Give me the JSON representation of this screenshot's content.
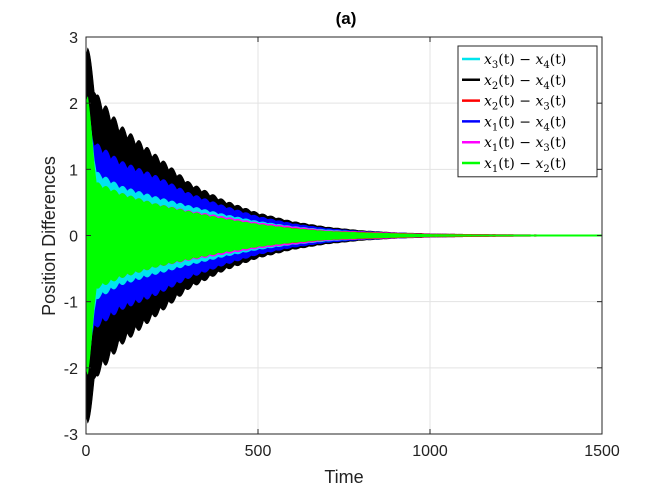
{
  "chart_data": {
    "type": "line",
    "title": "(a)",
    "xlabel": "Time",
    "ylabel": "Position Differences",
    "xlim": [
      0,
      1500
    ],
    "ylim": [
      -3,
      3
    ],
    "xticks": [
      0,
      500,
      1000,
      1500
    ],
    "yticks": [
      -3,
      -2,
      -1,
      0,
      1,
      2,
      3
    ],
    "xtick_labels": [
      "0",
      "500",
      "1000",
      "1500"
    ],
    "ytick_labels": [
      "-3",
      "-2",
      "-1",
      "0",
      "1",
      "2",
      "3"
    ],
    "grid": true,
    "legend_position": "top-right",
    "series": [
      {
        "name": "x3(t) − x4(t)",
        "color": "#00e5ee",
        "envelope": {
          "x": [
            0,
            5,
            30,
            100,
            200,
            300,
            400,
            500,
            600,
            700,
            800,
            1000,
            1200,
            1500
          ],
          "y": [
            1.9,
            1.9,
            0.9,
            0.7,
            0.55,
            0.42,
            0.3,
            0.2,
            0.13,
            0.08,
            0.05,
            0.02,
            0.01,
            0.005
          ]
        }
      },
      {
        "name": "x2(t) − x4(t)",
        "color": "#000000",
        "envelope": {
          "x": [
            0,
            5,
            30,
            100,
            200,
            300,
            400,
            500,
            600,
            700,
            800,
            900,
            1000,
            1200,
            1500
          ],
          "y": [
            2.7,
            2.7,
            2.0,
            1.55,
            1.15,
            0.75,
            0.5,
            0.32,
            0.2,
            0.12,
            0.07,
            0.04,
            0.025,
            0.01,
            0.005
          ]
        }
      },
      {
        "name": "x2(t) − x3(t)",
        "color": "#ff0000",
        "envelope": {
          "x": [
            0,
            5,
            30,
            100,
            200,
            300,
            500,
            700,
            1000,
            1500
          ],
          "y": [
            1.0,
            1.0,
            0.6,
            0.5,
            0.4,
            0.3,
            0.15,
            0.06,
            0.02,
            0.005
          ]
        }
      },
      {
        "name": "x1(t) − x4(t)",
        "color": "#0000ff",
        "envelope": {
          "x": [
            0,
            5,
            30,
            100,
            200,
            300,
            400,
            500,
            600,
            700,
            800,
            1000,
            1200,
            1500
          ],
          "y": [
            1.5,
            1.5,
            1.3,
            1.05,
            0.85,
            0.6,
            0.42,
            0.27,
            0.17,
            0.1,
            0.06,
            0.02,
            0.01,
            0.005
          ]
        }
      },
      {
        "name": "x1(t) − x3(t)",
        "color": "#ff00ff",
        "envelope": {
          "x": [
            0,
            5,
            30,
            100,
            200,
            300,
            500,
            700,
            1000,
            1500
          ],
          "y": [
            1.3,
            1.3,
            0.7,
            0.6,
            0.45,
            0.35,
            0.18,
            0.07,
            0.02,
            0.005
          ]
        }
      },
      {
        "name": "x1(t) − x2(t)",
        "color": "#00ff00",
        "envelope": {
          "x": [
            0,
            5,
            30,
            100,
            200,
            300,
            400,
            500,
            600,
            700,
            800,
            1000,
            1200,
            1500
          ],
          "y": [
            2.0,
            2.0,
            0.75,
            0.6,
            0.45,
            0.34,
            0.24,
            0.16,
            0.1,
            0.06,
            0.04,
            0.015,
            0.008,
            0.004
          ]
        }
      }
    ],
    "legend": [
      {
        "var_a": "x",
        "sub_a": "3",
        "var_b": "x",
        "sub_b": "4",
        "color": "#00e5ee"
      },
      {
        "var_a": "x",
        "sub_a": "2",
        "var_b": "x",
        "sub_b": "4",
        "color": "#000000"
      },
      {
        "var_a": "x",
        "sub_a": "2",
        "var_b": "x",
        "sub_b": "3",
        "color": "#ff0000"
      },
      {
        "var_a": "x",
        "sub_a": "1",
        "var_b": "x",
        "sub_b": "4",
        "color": "#0000ff"
      },
      {
        "var_a": "x",
        "sub_a": "1",
        "var_b": "x",
        "sub_b": "3",
        "color": "#ff00ff"
      },
      {
        "var_a": "x",
        "sub_a": "1",
        "var_b": "x",
        "sub_b": "2",
        "color": "#00ff00"
      }
    ],
    "legend_text": {
      "open": "(t) − ",
      "close": "(t)"
    }
  }
}
